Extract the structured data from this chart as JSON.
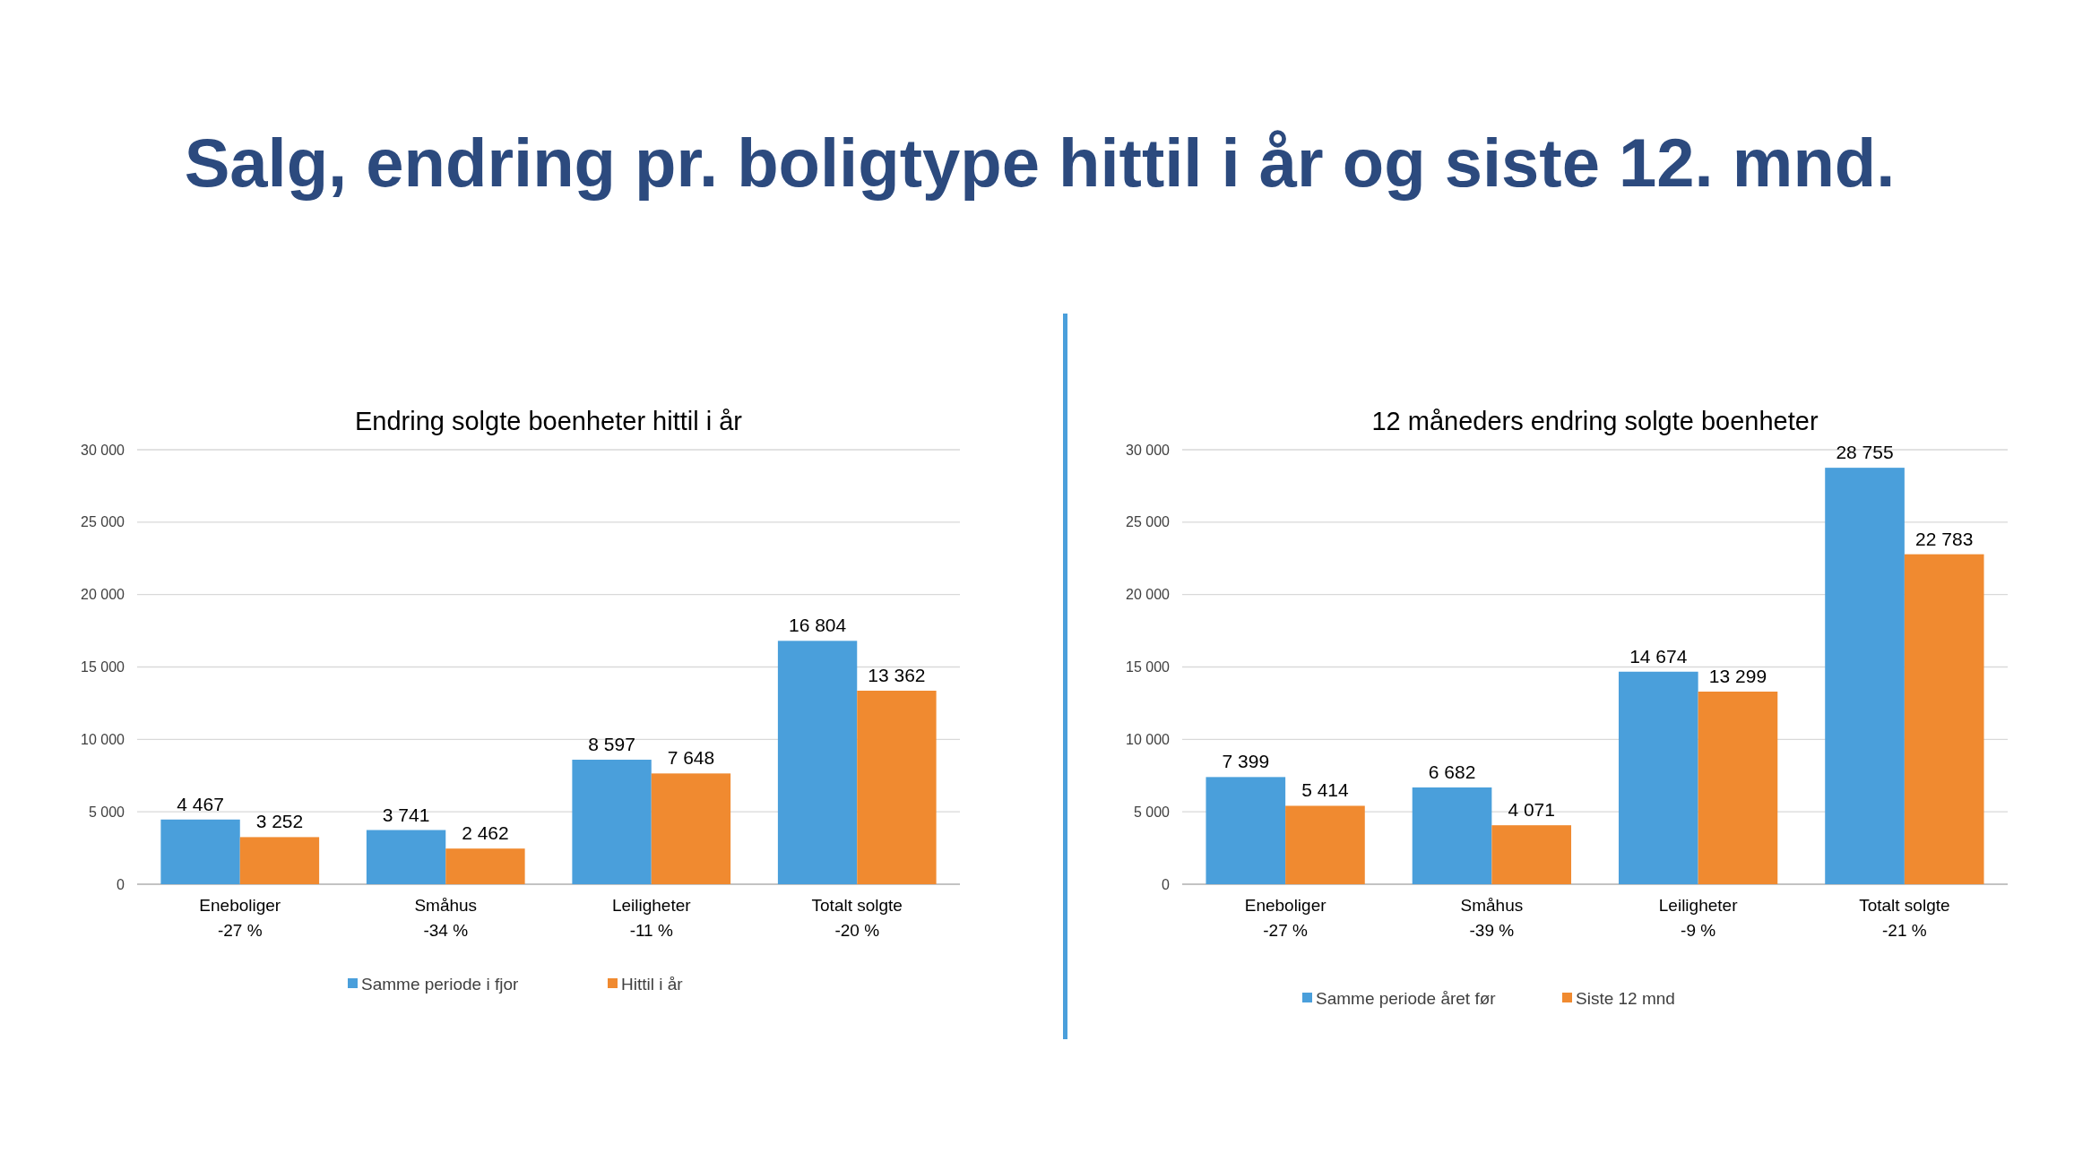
{
  "chart_data": [
    {
      "type": "bar",
      "annotations": [
        "Salg, endring pr. boligtype hittil i år og siste 12. mnd."
      ],
      "title": "Endring solgte boenheter hittil i år",
      "categories": [
        "Eneboliger\n-27 %",
        "Småhus\n-34 %",
        "Leiligheter\n-11 %",
        "Totalt solgte\n-20 %"
      ],
      "series": [
        {
          "name": "Samme periode i fjor",
          "color": "#4a9fdb",
          "values": [
            4467,
            3741,
            8597,
            16804
          ],
          "value_labels": [
            "4 467",
            "3 741",
            "8 597",
            "16 804"
          ]
        },
        {
          "name": "Hittil i år",
          "color": "#f08a30",
          "values": [
            3252,
            2462,
            7648,
            13362
          ],
          "value_labels": [
            "3 252",
            "2 462",
            "7 648",
            "13 362"
          ]
        }
      ],
      "ylim": [
        0,
        30000
      ],
      "yticks": [
        0,
        {
          "value": 5000,
          "label": "5 000"
        },
        {
          "value": 10000,
          "label": "10 000"
        },
        {
          "value": 15000,
          "label": "15 000"
        },
        {
          "value": 20000,
          "label": "20 000"
        },
        {
          "value": 25000,
          "label": "25 000"
        },
        {
          "value": 30000,
          "label": "30 000"
        }
      ],
      "grid": "y",
      "legend": "bottom"
    },
    {
      "type": "bar",
      "title": "12 måneders endring solgte boenheter",
      "categories": [
        "Eneboliger\n-27 %",
        "Småhus\n-39 %",
        "Leiligheter\n-9 %",
        "Totalt solgte\n-21 %"
      ],
      "series": [
        {
          "name": "Samme periode året før",
          "color": "#4a9fdb",
          "values": [
            7399,
            6682,
            14674,
            28755
          ],
          "value_labels": [
            "7 399",
            "6 682",
            "14 674",
            "28 755"
          ]
        },
        {
          "name": "Siste 12 mnd",
          "color": "#f08a30",
          "values": [
            5414,
            4071,
            13299,
            22783
          ],
          "value_labels": [
            "5 414",
            "4 071",
            "13 299",
            "22 783"
          ]
        }
      ],
      "ylim": [
        0,
        30000
      ],
      "yticks": [
        0,
        {
          "value": 5000,
          "label": "5 000"
        },
        {
          "value": 10000,
          "label": "10 000"
        },
        {
          "value": 15000,
          "label": "15 000"
        },
        {
          "value": 20000,
          "label": "20 000"
        },
        {
          "value": 25000,
          "label": "25 000"
        },
        {
          "value": 30000,
          "label": "30 000"
        }
      ],
      "grid": "y",
      "legend": "bottom"
    }
  ]
}
